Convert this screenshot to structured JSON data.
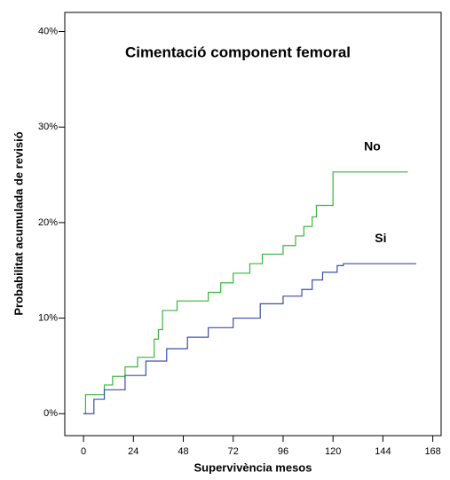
{
  "chart_data": {
    "type": "line",
    "step": "post",
    "title": "Cimentació component femoral",
    "x_label": "Supervivència mesos",
    "y_label": "Probabilitat acumulada de revisió",
    "xlim": [
      -9,
      172
    ],
    "xticks": [
      0,
      24,
      48,
      72,
      96,
      120,
      144,
      168
    ],
    "ylim": [
      -2.3,
      42
    ],
    "yticks": [
      {
        "value": 0,
        "label": "0%"
      },
      {
        "value": 10,
        "label": "10%"
      },
      {
        "value": 20,
        "label": "20%"
      },
      {
        "value": 30,
        "label": "30%"
      },
      {
        "value": 40,
        "label": "40%"
      }
    ],
    "series": [
      {
        "name": "No",
        "color": "#3cb43c",
        "x": [
          0,
          1,
          10,
          14,
          20,
          26,
          34,
          36,
          38,
          45,
          60,
          66,
          72,
          80,
          86,
          96,
          102,
          106,
          110,
          112,
          120,
          156
        ],
        "values": [
          0,
          2,
          3,
          3.9,
          4.9,
          5.9,
          7.8,
          8.8,
          10.8,
          11.8,
          12.7,
          13.7,
          14.7,
          15.7,
          16.7,
          17.6,
          18.6,
          19.6,
          20.6,
          21.8,
          25.3,
          25.3
        ]
      },
      {
        "name": "Si",
        "color": "#3a4fae",
        "x": [
          0,
          5,
          10,
          20,
          30,
          40,
          50,
          60,
          72,
          85,
          96,
          105,
          110,
          115,
          122,
          125,
          160
        ],
        "values": [
          0,
          1.5,
          2.5,
          4,
          5.5,
          6.8,
          8,
          9,
          10,
          11.5,
          12.3,
          13,
          14,
          14.8,
          15.5,
          15.7,
          15.7
        ]
      }
    ]
  }
}
